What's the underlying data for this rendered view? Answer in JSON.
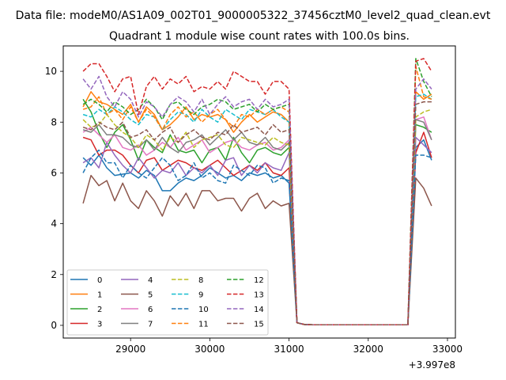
{
  "chart_data": {
    "type": "line",
    "suptitle": "Data file: modeM0/AS1A09_002T01_9000005322_37456cztM0_level2_quad_clean.evt",
    "title": "Quadrant 1 module wise count rates with 100.0s bins.",
    "xlabel": "",
    "ylabel": "",
    "offset_text": "+3.997e8",
    "xlim": [
      28150,
      33100
    ],
    "ylim": [
      -0.5,
      11
    ],
    "x_ticks": [
      29000,
      30000,
      31000,
      32000,
      33000
    ],
    "y_ticks": [
      0,
      2,
      4,
      6,
      8,
      10
    ],
    "grid": false,
    "legend_position": "lower left",
    "legend_columns": 4,
    "x": [
      28400,
      28500,
      28600,
      28700,
      28800,
      28900,
      29000,
      29100,
      29200,
      29300,
      29400,
      29500,
      29600,
      29700,
      29800,
      29900,
      30000,
      30100,
      30200,
      30300,
      30400,
      30500,
      30600,
      30700,
      30800,
      30900,
      31000,
      31100,
      31200,
      31300,
      31400,
      31500,
      31600,
      31700,
      31800,
      31900,
      32000,
      32100,
      32200,
      32300,
      32400,
      32500,
      32600,
      32700,
      32800
    ],
    "series": [
      {
        "name": "0",
        "color": "#1f77b4",
        "dash": "solid",
        "values": [
          6.6,
          6.3,
          6.7,
          6.2,
          5.9,
          5.95,
          6.0,
          5.8,
          6.1,
          5.9,
          5.3,
          5.3,
          5.6,
          5.8,
          5.7,
          5.9,
          6.2,
          6.0,
          5.8,
          5.9,
          5.7,
          6.0,
          5.9,
          6.0,
          5.8,
          5.9,
          5.6,
          0.1,
          0.03,
          0.02,
          0.02,
          0.02,
          0.02,
          0.02,
          0.02,
          0.02,
          0.02,
          0.02,
          0.02,
          0.02,
          0.02,
          0.02,
          7.0,
          7.3,
          6.5
        ]
      },
      {
        "name": "1",
        "color": "#ff7f0e",
        "dash": "solid",
        "values": [
          8.6,
          9.2,
          8.8,
          8.7,
          8.5,
          8.3,
          8.7,
          8.0,
          8.6,
          8.3,
          7.7,
          7.9,
          8.2,
          8.6,
          8.1,
          8.3,
          8.2,
          8.3,
          8.1,
          7.6,
          8.0,
          8.3,
          8.0,
          8.2,
          8.4,
          8.3,
          8.0,
          0.1,
          0.03,
          0.02,
          0.02,
          0.02,
          0.02,
          0.02,
          0.02,
          0.02,
          0.02,
          0.02,
          0.02,
          0.02,
          0.02,
          0.02,
          9.2,
          8.9,
          9.1
        ]
      },
      {
        "name": "2",
        "color": "#2ca02c",
        "dash": "solid",
        "values": [
          8.9,
          8.4,
          7.6,
          7.0,
          7.6,
          7.9,
          7.3,
          6.5,
          7.3,
          7.0,
          6.8,
          7.5,
          6.9,
          6.8,
          6.9,
          6.4,
          6.9,
          7.0,
          6.5,
          7.4,
          6.8,
          6.4,
          6.9,
          7.0,
          6.8,
          6.7,
          7.0,
          0.1,
          0.03,
          0.02,
          0.02,
          0.02,
          0.02,
          0.02,
          0.02,
          0.02,
          0.02,
          0.02,
          0.02,
          0.02,
          0.02,
          0.02,
          7.9,
          7.8,
          7.6
        ]
      },
      {
        "name": "3",
        "color": "#d62728",
        "dash": "solid",
        "values": [
          7.4,
          7.3,
          6.7,
          6.9,
          6.9,
          6.7,
          6.3,
          6.0,
          6.5,
          6.6,
          6.1,
          6.3,
          6.5,
          6.4,
          6.2,
          6.1,
          6.3,
          6.5,
          6.2,
          5.9,
          6.1,
          6.3,
          6.1,
          6.4,
          6.0,
          5.9,
          6.2,
          0.1,
          0.03,
          0.02,
          0.02,
          0.02,
          0.02,
          0.02,
          0.02,
          0.02,
          0.02,
          0.02,
          0.02,
          0.02,
          0.02,
          0.02,
          6.8,
          7.6,
          6.6
        ]
      },
      {
        "name": "4",
        "color": "#9467bd",
        "dash": "solid",
        "values": [
          6.4,
          6.6,
          6.2,
          7.2,
          6.7,
          6.3,
          6.0,
          6.6,
          6.2,
          5.8,
          6.1,
          6.0,
          6.4,
          5.9,
          6.2,
          6.0,
          6.3,
          5.9,
          6.5,
          6.6,
          5.9,
          6.3,
          6.0,
          6.4,
          6.2,
          6.1,
          6.8,
          0.1,
          0.03,
          0.02,
          0.02,
          0.02,
          0.02,
          0.02,
          0.02,
          0.02,
          0.02,
          0.02,
          0.02,
          0.02,
          0.02,
          0.02,
          7.4,
          7.1,
          6.8
        ]
      },
      {
        "name": "5",
        "color": "#8c564b",
        "dash": "solid",
        "values": [
          4.8,
          5.9,
          5.5,
          5.7,
          4.9,
          5.6,
          4.9,
          4.6,
          5.3,
          4.9,
          4.3,
          5.1,
          4.7,
          5.2,
          4.6,
          5.3,
          5.3,
          4.9,
          5.0,
          5.0,
          4.5,
          5.0,
          5.2,
          4.6,
          4.9,
          4.7,
          4.8,
          0.1,
          0.03,
          0.02,
          0.02,
          0.02,
          0.02,
          0.02,
          0.02,
          0.02,
          0.02,
          0.02,
          0.02,
          0.02,
          0.02,
          0.02,
          5.8,
          5.4,
          4.7
        ]
      },
      {
        "name": "6",
        "color": "#e377c2",
        "dash": "solid",
        "values": [
          7.6,
          7.8,
          7.5,
          7.2,
          7.5,
          7.0,
          6.9,
          7.1,
          6.7,
          6.9,
          7.2,
          7.0,
          7.4,
          6.9,
          7.1,
          7.3,
          6.8,
          7.0,
          7.2,
          7.3,
          7.0,
          6.9,
          7.1,
          7.2,
          6.9,
          7.0,
          7.3,
          0.1,
          0.03,
          0.02,
          0.02,
          0.02,
          0.02,
          0.02,
          0.02,
          0.02,
          0.02,
          0.02,
          0.02,
          0.02,
          0.02,
          0.02,
          8.1,
          8.2,
          7.3
        ]
      },
      {
        "name": "7",
        "color": "#7f7f7f",
        "dash": "solid",
        "values": [
          7.7,
          7.6,
          7.9,
          7.5,
          7.5,
          7.4,
          7.1,
          7.0,
          7.3,
          6.9,
          7.4,
          7.0,
          6.8,
          7.2,
          7.3,
          7.5,
          7.1,
          7.4,
          7.7,
          7.3,
          7.6,
          7.2,
          7.1,
          7.4,
          7.0,
          6.9,
          7.2,
          0.1,
          0.03,
          0.02,
          0.02,
          0.02,
          0.02,
          0.02,
          0.02,
          0.02,
          0.02,
          0.02,
          0.02,
          0.02,
          0.02,
          0.02,
          8.1,
          8.0,
          7.3
        ]
      },
      {
        "name": "8",
        "color": "#bcbd22",
        "dash": "dashed",
        "values": [
          8.1,
          7.8,
          7.9,
          8.3,
          7.9,
          7.6,
          7.4,
          7.0,
          7.5,
          7.3,
          6.9,
          7.4,
          7.2,
          7.6,
          7.0,
          7.3,
          7.4,
          7.5,
          7.1,
          7.0,
          7.4,
          7.3,
          7.2,
          7.1,
          7.4,
          7.2,
          7.1,
          0.1,
          0.03,
          0.02,
          0.02,
          0.02,
          0.02,
          0.02,
          0.02,
          0.02,
          0.02,
          0.02,
          0.02,
          0.02,
          0.02,
          0.02,
          8.2,
          8.4,
          8.5
        ]
      },
      {
        "name": "9",
        "color": "#17becf",
        "dash": "dashed",
        "values": [
          8.3,
          8.2,
          8.5,
          8.3,
          8.6,
          8.4,
          8.1,
          7.9,
          8.3,
          8.2,
          7.7,
          8.1,
          8.4,
          8.3,
          8.0,
          8.5,
          8.2,
          8.0,
          8.5,
          8.3,
          8.1,
          8.5,
          8.4,
          8.3,
          8.5,
          8.2,
          8.0,
          0.1,
          0.03,
          0.02,
          0.02,
          0.02,
          0.02,
          0.02,
          0.02,
          0.02,
          0.02,
          0.02,
          0.02,
          0.02,
          0.02,
          0.02,
          9.0,
          9.1,
          8.9
        ]
      },
      {
        "name": "10",
        "color": "#1f77b4",
        "dash": "dashed",
        "values": [
          6.0,
          6.6,
          6.9,
          6.4,
          6.4,
          5.8,
          6.3,
          6.0,
          5.8,
          6.2,
          6.6,
          6.3,
          5.7,
          5.9,
          6.4,
          5.8,
          6.0,
          5.7,
          5.6,
          6.3,
          6.1,
          5.9,
          6.3,
          6.2,
          5.6,
          5.8,
          5.7,
          0.1,
          0.03,
          0.02,
          0.02,
          0.02,
          0.02,
          0.02,
          0.02,
          0.02,
          0.02,
          0.02,
          0.02,
          0.02,
          0.02,
          0.02,
          6.7,
          6.7,
          6.6
        ]
      },
      {
        "name": "11",
        "color": "#ff7f0e",
        "dash": "dashed",
        "values": [
          8.5,
          8.6,
          9.0,
          8.3,
          8.5,
          8.1,
          8.6,
          8.0,
          8.5,
          8.2,
          7.7,
          8.3,
          8.6,
          8.2,
          8.4,
          8.0,
          8.3,
          8.5,
          8.1,
          7.8,
          8.3,
          8.2,
          8.5,
          8.3,
          8.5,
          8.6,
          8.4,
          0.1,
          0.03,
          0.02,
          0.02,
          0.02,
          0.02,
          0.02,
          0.02,
          0.02,
          0.02,
          0.02,
          0.02,
          0.02,
          0.02,
          0.02,
          10.2,
          9.0,
          8.9
        ]
      },
      {
        "name": "12",
        "color": "#2ca02c",
        "dash": "dashed",
        "values": [
          8.7,
          8.9,
          8.7,
          8.4,
          8.8,
          8.6,
          8.3,
          8.5,
          8.9,
          8.6,
          8.1,
          8.7,
          8.8,
          8.5,
          8.3,
          8.6,
          8.7,
          8.9,
          8.8,
          8.5,
          8.6,
          8.7,
          8.4,
          8.7,
          8.5,
          8.6,
          8.7,
          0.1,
          0.03,
          0.02,
          0.02,
          0.02,
          0.02,
          0.02,
          0.02,
          0.02,
          0.02,
          0.02,
          0.02,
          0.02,
          0.02,
          0.02,
          10.5,
          9.6,
          9.0
        ]
      },
      {
        "name": "13",
        "color": "#d62728",
        "dash": "dashed",
        "values": [
          10.0,
          10.3,
          10.3,
          9.8,
          9.2,
          9.7,
          9.8,
          8.3,
          9.4,
          9.8,
          9.3,
          9.7,
          9.5,
          9.8,
          9.2,
          9.4,
          9.3,
          9.6,
          9.3,
          10.0,
          9.8,
          9.6,
          9.6,
          9.1,
          9.6,
          9.6,
          9.3,
          0.1,
          0.03,
          0.02,
          0.02,
          0.02,
          0.02,
          0.02,
          0.02,
          0.02,
          0.02,
          0.02,
          0.02,
          0.02,
          0.02,
          0.02,
          10.4,
          10.5,
          10.0
        ]
      },
      {
        "name": "14",
        "color": "#9467bd",
        "dash": "dashed",
        "values": [
          9.7,
          9.3,
          9.8,
          9.0,
          8.6,
          9.2,
          8.9,
          8.2,
          8.8,
          8.6,
          8.2,
          8.7,
          9.0,
          8.8,
          8.4,
          8.9,
          8.3,
          8.7,
          9.0,
          8.6,
          8.8,
          8.9,
          8.5,
          8.9,
          8.6,
          8.7,
          8.9,
          0.1,
          0.03,
          0.02,
          0.02,
          0.02,
          0.02,
          0.02,
          0.02,
          0.02,
          0.02,
          0.02,
          0.02,
          0.02,
          0.02,
          0.02,
          9.3,
          9.7,
          9.3
        ]
      },
      {
        "name": "15",
        "color": "#8c564b",
        "dash": "dashed",
        "values": [
          7.8,
          7.7,
          8.0,
          7.8,
          7.7,
          8.0,
          7.4,
          7.5,
          7.7,
          7.3,
          7.6,
          7.8,
          7.2,
          7.5,
          7.7,
          7.4,
          7.3,
          7.6,
          7.5,
          7.9,
          7.6,
          7.7,
          7.8,
          7.5,
          7.9,
          7.6,
          7.7,
          0.1,
          0.03,
          0.02,
          0.02,
          0.02,
          0.02,
          0.02,
          0.02,
          0.02,
          0.02,
          0.02,
          0.02,
          0.02,
          0.02,
          0.02,
          8.7,
          8.8,
          8.8
        ]
      }
    ]
  }
}
